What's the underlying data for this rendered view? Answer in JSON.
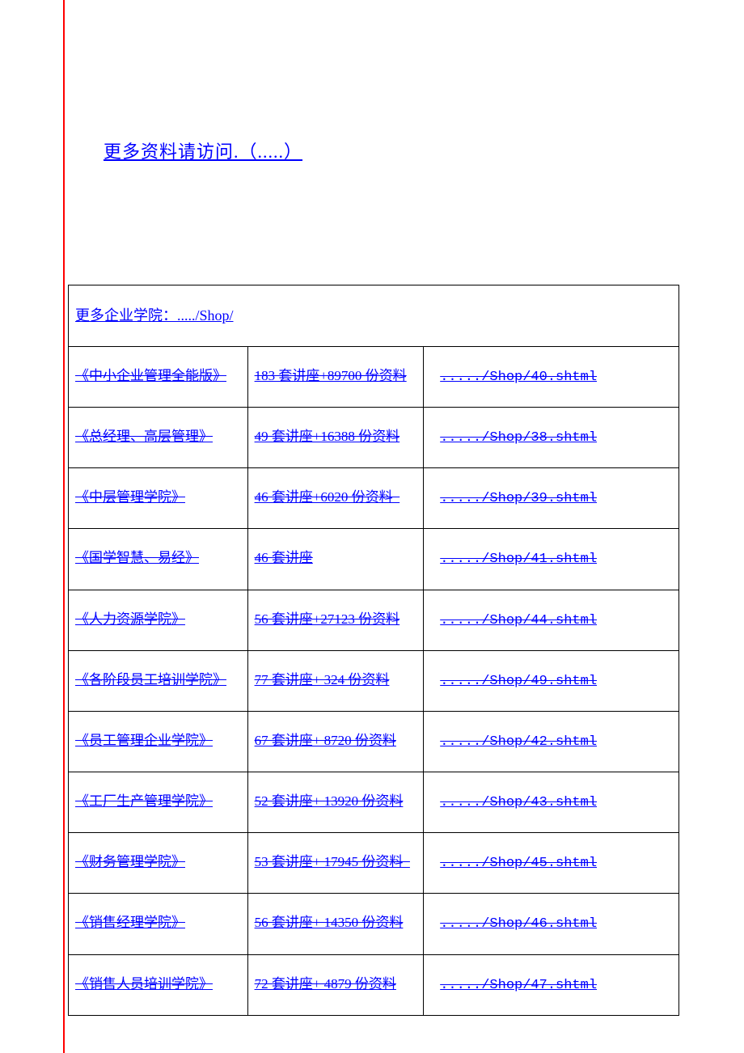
{
  "top_link": "更多资料请访问.（.....）",
  "header_label": "更多企业学院：...../Shop/",
  "rows": [
    {
      "title": "《中小企业管理全能版》",
      "desc": "183 套讲座+89700 份资料",
      "url": "...../Shop/40.shtml"
    },
    {
      "title": "《总经理、高层管理》",
      "desc": "49 套讲座+16388 份资料",
      "url": "...../Shop/38.shtml"
    },
    {
      "title": "《中层管理学院》",
      "desc": "46 套讲座+6020 份资料  ",
      "url": "...../Shop/39.shtml"
    },
    {
      "title": "《国学智慧、易经》",
      "desc": "46 套讲座",
      "url": "...../Shop/41.shtml"
    },
    {
      "title": "《人力资源学院》",
      "desc": "56 套讲座+27123 份资料",
      "url": "...../Shop/44.shtml"
    },
    {
      "title": "《各阶段员工培训学院》",
      "desc": "77 套讲座+ 324 份资料",
      "url": "...../Shop/49.shtml"
    },
    {
      "title": "《员工管理企业学院》",
      "desc": "67 套讲座+ 8720 份资料",
      "url": "...../Shop/42.shtml"
    },
    {
      "title": "《工厂生产管理学院》",
      "desc": "52 套讲座+ 13920 份资料",
      "url": "...../Shop/43.shtml"
    },
    {
      "title": "《财务管理学院》",
      "desc": "53 套讲座+ 17945 份资料  ",
      "url": "...../Shop/45.shtml"
    },
    {
      "title": "《销售经理学院》",
      "desc": "56 套讲座+ 14350 份资料",
      "url": "...../Shop/46.shtml"
    },
    {
      "title": "《销售人员培训学院》",
      "desc": "72 套讲座+ 4879 份资料",
      "url": "...../Shop/47.shtml"
    }
  ],
  "colors": {
    "link": "#0000ff",
    "border_left": "#ff0000",
    "cell_border": "#000000",
    "background": "#ffffff"
  },
  "font_sizes": {
    "top_link": 22,
    "header": 18,
    "cell": 17
  }
}
